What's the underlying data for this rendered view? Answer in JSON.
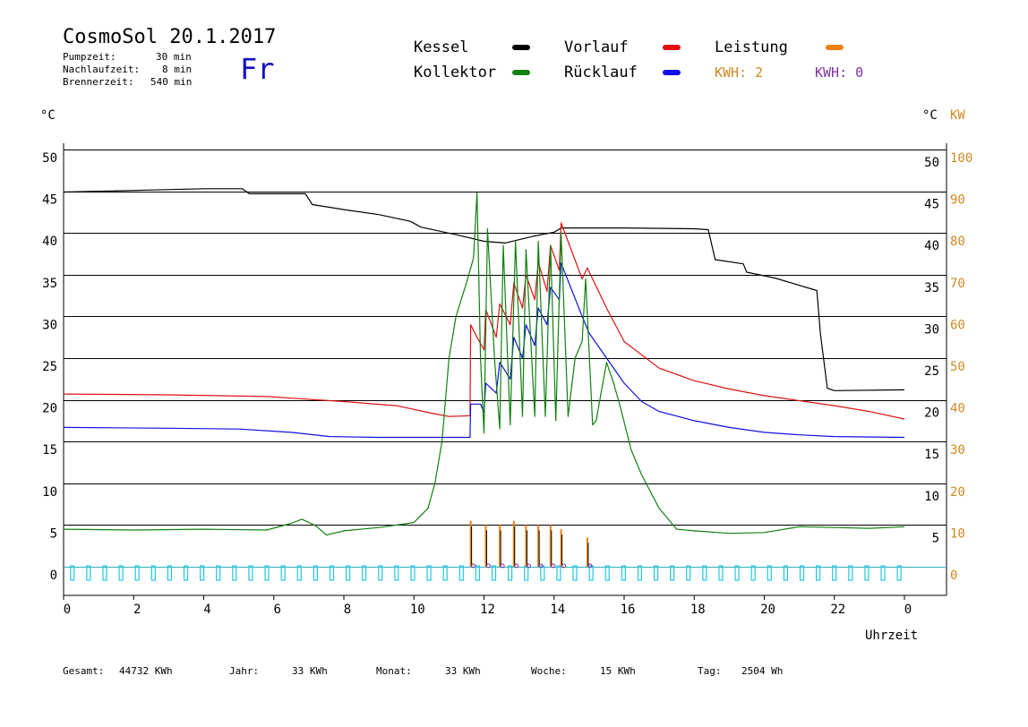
{
  "header": {
    "title": "CosmoSol 20.1.2017",
    "day": "Fr",
    "params": [
      {
        "label": "Pumpzeit:",
        "value": "30 min"
      },
      {
        "label": "Nachlaufzeit:",
        "value": "8 min"
      },
      {
        "label": "Brennerzeit:",
        "value": "540 min"
      }
    ]
  },
  "legend": [
    {
      "name": "Kessel",
      "color": "#000000"
    },
    {
      "name": "Kollektor",
      "color": "#108010"
    },
    {
      "name": "Vorlauf",
      "color": "#e01010"
    },
    {
      "name": "Rücklauf",
      "color": "#1010e0"
    },
    {
      "name": "Leistung",
      "color": "#f08010"
    }
  ],
  "kwh": [
    {
      "label": "KWH: 2",
      "color": "#d08820"
    },
    {
      "label": "KWH: 0",
      "color": "#8030a0"
    }
  ],
  "axes": {
    "left_unit": "°C",
    "right_unit_c": "°C",
    "right_unit_kw": "KW",
    "x_label": "Uhrzeit",
    "left_ticks": [
      "50",
      "45",
      "40",
      "35",
      "30",
      "25",
      "20",
      "15",
      "10",
      "5",
      "0"
    ],
    "right_ticks_c": [
      "50",
      "45",
      "40",
      "35",
      "30",
      "25",
      "20",
      "15",
      "10",
      "5"
    ],
    "right_ticks_kw": [
      "100",
      "90",
      "80",
      "70",
      "60",
      "50",
      "40",
      "30",
      "20",
      "10",
      "0"
    ],
    "x_ticks": [
      "0",
      "2",
      "4",
      "6",
      "8",
      "10",
      "12",
      "14",
      "16",
      "18",
      "20",
      "22",
      "0"
    ],
    "kw_color": "#d08820"
  },
  "footer": [
    {
      "label": "Gesamt:",
      "value": "44732 KWh"
    },
    {
      "label": "Jahr:",
      "value": "33 KWh"
    },
    {
      "label": "Monat:",
      "value": "33 KWh"
    },
    {
      "label": "Woche:",
      "value": "15 KWh"
    },
    {
      "label": "Tag:",
      "value": "2504 Wh"
    }
  ],
  "chart_data": {
    "type": "line",
    "title": "CosmoSol 20.1.2017",
    "xlabel": "Uhrzeit",
    "ylabel": "°C",
    "xlim": [
      0,
      24
    ],
    "ylim": [
      0,
      50
    ],
    "y2lim": [
      0,
      100
    ],
    "grid": true,
    "series": [
      {
        "name": "Kessel",
        "color": "#000000",
        "points": [
          [
            0,
            44.9
          ],
          [
            2,
            45.1
          ],
          [
            4,
            45.3
          ],
          [
            5.1,
            45.3
          ],
          [
            5.3,
            44.7
          ],
          [
            6.9,
            44.7
          ],
          [
            7.1,
            43.4
          ],
          [
            8,
            42.8
          ],
          [
            9,
            42.2
          ],
          [
            9.9,
            41.4
          ],
          [
            10.2,
            40.7
          ],
          [
            11.2,
            39.8
          ],
          [
            12,
            39.0
          ],
          [
            12.6,
            38.8
          ],
          [
            13.4,
            39.6
          ],
          [
            14,
            40.1
          ],
          [
            14.2,
            40.6
          ],
          [
            15,
            40.6
          ],
          [
            16,
            40.6
          ],
          [
            18,
            40.5
          ],
          [
            18.4,
            40.4
          ],
          [
            18.6,
            36.8
          ],
          [
            19.4,
            36.3
          ],
          [
            19.5,
            35.3
          ],
          [
            20.3,
            34.6
          ],
          [
            21.5,
            33.1
          ],
          [
            21.6,
            28
          ],
          [
            21.8,
            21.4
          ],
          [
            22,
            21.1
          ],
          [
            24,
            21.2
          ]
        ]
      },
      {
        "name": "Vorlauf",
        "color": "#e01010",
        "points": [
          [
            0,
            20.7
          ],
          [
            3,
            20.6
          ],
          [
            5.8,
            20.4
          ],
          [
            6.5,
            20.2
          ],
          [
            8,
            19.8
          ],
          [
            9.5,
            19.3
          ],
          [
            10.5,
            18.4
          ],
          [
            11,
            18.0
          ],
          [
            11.6,
            18.1
          ],
          [
            11.62,
            29
          ],
          [
            11.8,
            27.5
          ],
          [
            12,
            26
          ],
          [
            12.05,
            30.8
          ],
          [
            12.35,
            27.5
          ],
          [
            12.45,
            31.5
          ],
          [
            12.75,
            29
          ],
          [
            12.85,
            34
          ],
          [
            13.1,
            31
          ],
          [
            13.2,
            35
          ],
          [
            13.45,
            32
          ],
          [
            13.55,
            36.5
          ],
          [
            13.8,
            33
          ],
          [
            13.9,
            38.5
          ],
          [
            14.15,
            35.5
          ],
          [
            14.2,
            41.2
          ],
          [
            14.8,
            34.5
          ],
          [
            14.95,
            35.8
          ],
          [
            15.5,
            31
          ],
          [
            16,
            27
          ],
          [
            17,
            23.8
          ],
          [
            18,
            22.3
          ],
          [
            19,
            21.3
          ],
          [
            20,
            20.5
          ],
          [
            21,
            19.9
          ],
          [
            22,
            19.3
          ],
          [
            23,
            18.6
          ],
          [
            24,
            17.7
          ]
        ]
      },
      {
        "name": "Rücklauf",
        "color": "#1010e0",
        "points": [
          [
            0,
            16.7
          ],
          [
            3,
            16.6
          ],
          [
            5,
            16.5
          ],
          [
            6.5,
            16.1
          ],
          [
            7.6,
            15.6
          ],
          [
            9,
            15.5
          ],
          [
            11.6,
            15.5
          ],
          [
            11.62,
            19.5
          ],
          [
            11.9,
            19.5
          ],
          [
            12,
            18.5
          ],
          [
            12.05,
            22
          ],
          [
            12.35,
            20.8
          ],
          [
            12.45,
            24.5
          ],
          [
            12.75,
            22.5
          ],
          [
            12.85,
            27.5
          ],
          [
            13.1,
            25
          ],
          [
            13.2,
            29
          ],
          [
            13.45,
            26.5
          ],
          [
            13.55,
            31
          ],
          [
            13.8,
            29
          ],
          [
            13.9,
            33.5
          ],
          [
            14.15,
            32
          ],
          [
            14.2,
            36.4
          ],
          [
            14.8,
            30
          ],
          [
            15,
            28
          ],
          [
            15.5,
            25
          ],
          [
            16,
            22
          ],
          [
            16.5,
            19.8
          ],
          [
            17,
            18.6
          ],
          [
            18,
            17.5
          ],
          [
            19,
            16.7
          ],
          [
            20,
            16.1
          ],
          [
            21,
            15.8
          ],
          [
            22,
            15.6
          ],
          [
            24,
            15.5
          ]
        ]
      },
      {
        "name": "Kollektor",
        "color": "#108010",
        "points": [
          [
            0,
            4.5
          ],
          [
            2,
            4.4
          ],
          [
            4,
            4.5
          ],
          [
            5.8,
            4.4
          ],
          [
            6.5,
            5.2
          ],
          [
            6.8,
            5.7
          ],
          [
            7.2,
            4.9
          ],
          [
            7.5,
            3.8
          ],
          [
            8,
            4.3
          ],
          [
            9,
            4.7
          ],
          [
            10,
            5.3
          ],
          [
            10.4,
            7
          ],
          [
            10.6,
            10
          ],
          [
            10.8,
            15
          ],
          [
            11,
            25
          ],
          [
            11.2,
            30
          ],
          [
            11.5,
            34
          ],
          [
            11.7,
            37
          ],
          [
            11.8,
            44.8
          ],
          [
            11.9,
            25
          ],
          [
            12,
            16
          ],
          [
            12.1,
            40.5
          ],
          [
            12.3,
            25
          ],
          [
            12.45,
            16.5
          ],
          [
            12.55,
            38.5
          ],
          [
            12.75,
            17
          ],
          [
            12.9,
            39
          ],
          [
            13.1,
            18
          ],
          [
            13.2,
            38
          ],
          [
            13.45,
            18
          ],
          [
            13.55,
            39
          ],
          [
            13.75,
            18
          ],
          [
            13.9,
            38.5
          ],
          [
            14.05,
            17.5
          ],
          [
            14.2,
            40
          ],
          [
            14.4,
            18
          ],
          [
            14.6,
            25
          ],
          [
            14.8,
            27
          ],
          [
            14.9,
            34.5
          ],
          [
            15.1,
            17
          ],
          [
            15.2,
            17.5
          ],
          [
            15.5,
            24.5
          ],
          [
            15.7,
            22
          ],
          [
            15.9,
            19
          ],
          [
            16.2,
            14
          ],
          [
            16.5,
            11
          ],
          [
            17,
            7
          ],
          [
            17.5,
            4.5
          ],
          [
            18,
            4.3
          ],
          [
            19,
            4.0
          ],
          [
            20,
            4.1
          ],
          [
            21,
            4.8
          ],
          [
            22,
            4.7
          ],
          [
            23,
            4.6
          ],
          [
            24,
            4.8
          ]
        ]
      }
    ],
    "leistung_spikes_hours": [
      11.62,
      12.05,
      12.45,
      12.85,
      13.2,
      13.55,
      13.9,
      14.2,
      14.95
    ],
    "leistung_spikes_kw": [
      11,
      10,
      10,
      11,
      10,
      10,
      10,
      9,
      7
    ],
    "burner_marks_count": 52
  }
}
